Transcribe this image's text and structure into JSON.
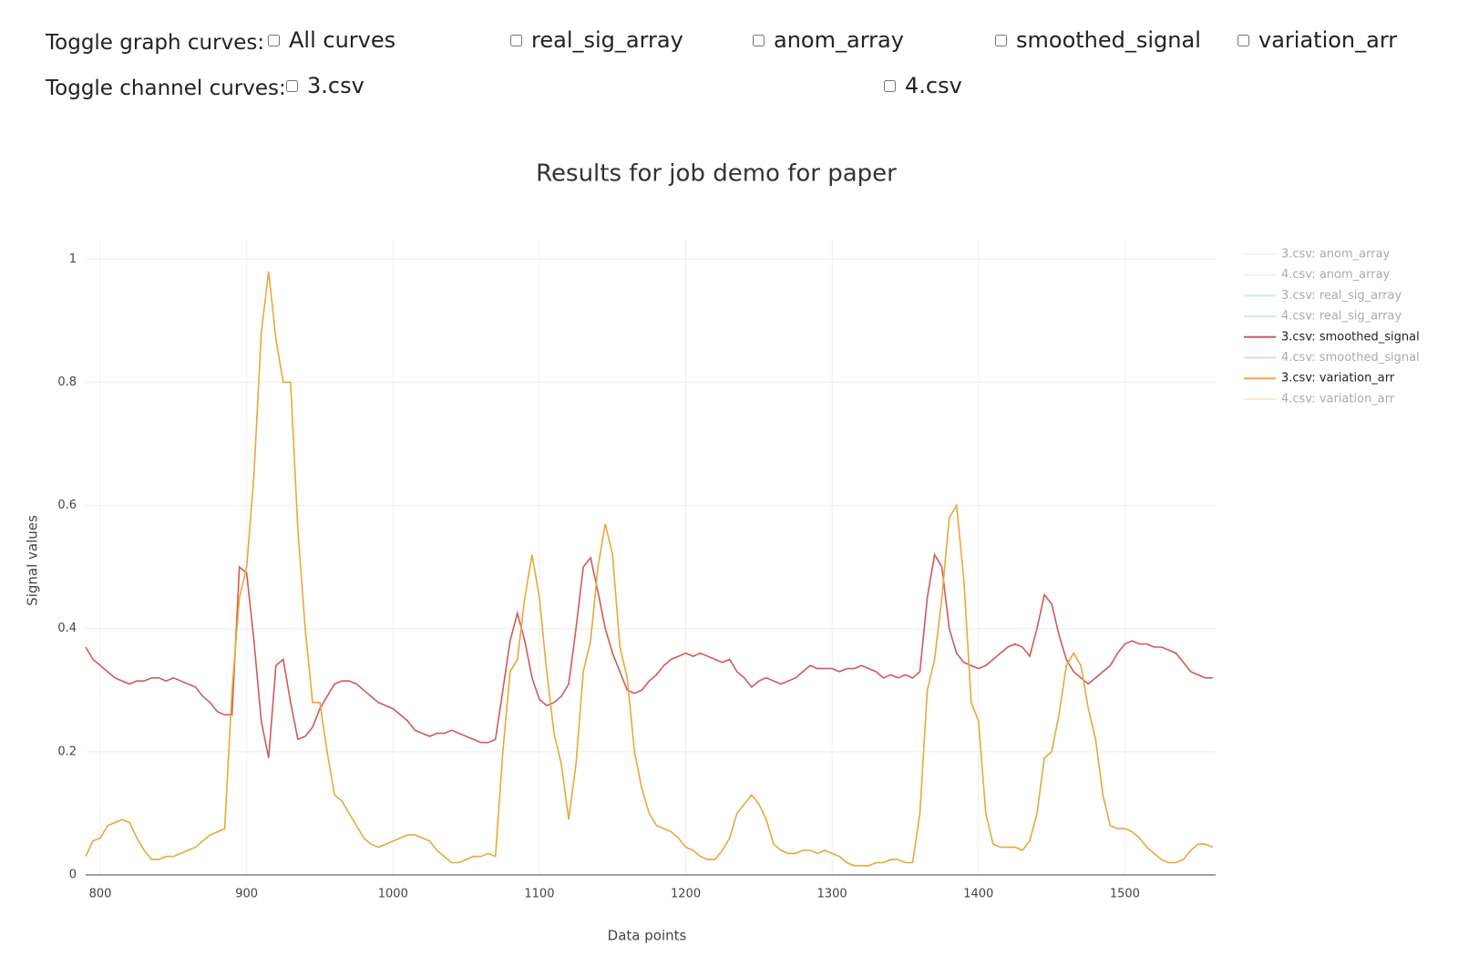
{
  "controls": {
    "graph_label": "Toggle graph curves:",
    "graph_options": [
      "All curves",
      "real_sig_array",
      "anom_array",
      "smoothed_signal",
      "variation_arr"
    ],
    "channel_label": "Toggle channel curves:",
    "channel_options": [
      "3.csv",
      "4.csv"
    ]
  },
  "chart_data": {
    "type": "line",
    "title": "Results for job demo for paper",
    "x_label": "Data points",
    "y_label": "Signal values",
    "xlim": [
      790,
      1562
    ],
    "xticks": [
      800,
      900,
      1000,
      1100,
      1200,
      1300,
      1400,
      1500
    ],
    "ylim": [
      0,
      1.033
    ],
    "yticks": [
      0,
      0.2,
      0.4,
      0.6,
      0.8,
      1
    ],
    "grid": true,
    "x": [
      790,
      795,
      800,
      805,
      810,
      815,
      820,
      825,
      830,
      835,
      840,
      845,
      850,
      855,
      860,
      865,
      870,
      875,
      880,
      885,
      890,
      895,
      900,
      905,
      910,
      915,
      920,
      925,
      930,
      935,
      940,
      945,
      950,
      955,
      960,
      965,
      970,
      975,
      980,
      985,
      990,
      995,
      1000,
      1005,
      1010,
      1015,
      1020,
      1025,
      1030,
      1035,
      1040,
      1045,
      1050,
      1055,
      1060,
      1065,
      1070,
      1075,
      1080,
      1085,
      1090,
      1095,
      1100,
      1105,
      1110,
      1115,
      1120,
      1125,
      1130,
      1135,
      1140,
      1145,
      1150,
      1155,
      1160,
      1165,
      1170,
      1175,
      1180,
      1185,
      1190,
      1195,
      1200,
      1205,
      1210,
      1215,
      1220,
      1225,
      1230,
      1235,
      1240,
      1245,
      1250,
      1255,
      1260,
      1265,
      1270,
      1275,
      1280,
      1285,
      1290,
      1295,
      1300,
      1305,
      1310,
      1315,
      1320,
      1325,
      1330,
      1335,
      1340,
      1345,
      1350,
      1355,
      1360,
      1365,
      1370,
      1375,
      1380,
      1385,
      1390,
      1395,
      1400,
      1405,
      1410,
      1415,
      1420,
      1425,
      1430,
      1435,
      1440,
      1445,
      1450,
      1455,
      1460,
      1465,
      1470,
      1475,
      1480,
      1485,
      1490,
      1495,
      1500,
      1505,
      1510,
      1515,
      1520,
      1525,
      1530,
      1535,
      1540,
      1545,
      1550,
      1555,
      1560
    ],
    "series": [
      {
        "name": "3.csv: anom_array",
        "color": "#e8e6d8",
        "visible": false
      },
      {
        "name": "4.csv: anom_array",
        "color": "#e8e6d8",
        "visible": false
      },
      {
        "name": "3.csv: real_sig_array",
        "color": "#9ecae1",
        "visible": false
      },
      {
        "name": "4.csv: real_sig_array",
        "color": "#9ecae1",
        "visible": false
      },
      {
        "name": "3.csv: smoothed_signal",
        "color": "#d05a5a",
        "visible": true,
        "values": [
          0.37,
          0.35,
          0.34,
          0.33,
          0.32,
          0.315,
          0.31,
          0.315,
          0.315,
          0.32,
          0.32,
          0.315,
          0.32,
          0.315,
          0.31,
          0.305,
          0.29,
          0.28,
          0.265,
          0.26,
          0.26,
          0.5,
          0.49,
          0.38,
          0.25,
          0.19,
          0.34,
          0.35,
          0.28,
          0.22,
          0.225,
          0.24,
          0.27,
          0.29,
          0.31,
          0.315,
          0.315,
          0.31,
          0.3,
          0.29,
          0.28,
          0.275,
          0.27,
          0.26,
          0.25,
          0.235,
          0.23,
          0.225,
          0.23,
          0.23,
          0.235,
          0.23,
          0.225,
          0.22,
          0.215,
          0.215,
          0.22,
          0.3,
          0.38,
          0.425,
          0.38,
          0.32,
          0.285,
          0.275,
          0.28,
          0.29,
          0.31,
          0.4,
          0.5,
          0.515,
          0.46,
          0.4,
          0.36,
          0.33,
          0.3,
          0.295,
          0.3,
          0.315,
          0.325,
          0.34,
          0.35,
          0.355,
          0.36,
          0.355,
          0.36,
          0.355,
          0.35,
          0.345,
          0.35,
          0.33,
          0.32,
          0.305,
          0.315,
          0.32,
          0.315,
          0.31,
          0.315,
          0.32,
          0.33,
          0.34,
          0.335,
          0.335,
          0.335,
          0.33,
          0.335,
          0.335,
          0.34,
          0.335,
          0.33,
          0.32,
          0.325,
          0.32,
          0.325,
          0.32,
          0.33,
          0.45,
          0.52,
          0.5,
          0.4,
          0.36,
          0.345,
          0.34,
          0.335,
          0.34,
          0.35,
          0.36,
          0.37,
          0.375,
          0.37,
          0.355,
          0.4,
          0.455,
          0.44,
          0.39,
          0.35,
          0.33,
          0.32,
          0.31,
          0.32,
          0.33,
          0.34,
          0.36,
          0.375,
          0.38,
          0.375,
          0.375,
          0.37,
          0.37,
          0.365,
          0.36,
          0.345,
          0.33,
          0.325,
          0.32,
          0.32
        ]
      },
      {
        "name": "4.csv: smoothed_signal",
        "color": "#e3a5a5",
        "visible": false
      },
      {
        "name": "3.csv: variation_arr",
        "color": "#e8a83a",
        "visible": true,
        "values": [
          0.03,
          0.055,
          0.06,
          0.08,
          0.085,
          0.09,
          0.085,
          0.06,
          0.04,
          0.025,
          0.025,
          0.03,
          0.03,
          0.035,
          0.04,
          0.045,
          0.055,
          0.065,
          0.07,
          0.075,
          0.3,
          0.45,
          0.5,
          0.65,
          0.88,
          0.98,
          0.87,
          0.8,
          0.8,
          0.56,
          0.4,
          0.28,
          0.28,
          0.2,
          0.13,
          0.12,
          0.1,
          0.08,
          0.06,
          0.05,
          0.045,
          0.05,
          0.055,
          0.06,
          0.065,
          0.065,
          0.06,
          0.055,
          0.04,
          0.03,
          0.02,
          0.02,
          0.025,
          0.03,
          0.03,
          0.035,
          0.03,
          0.2,
          0.33,
          0.35,
          0.45,
          0.52,
          0.45,
          0.33,
          0.23,
          0.18,
          0.09,
          0.18,
          0.33,
          0.38,
          0.5,
          0.57,
          0.52,
          0.37,
          0.32,
          0.2,
          0.14,
          0.1,
          0.08,
          0.075,
          0.07,
          0.06,
          0.045,
          0.04,
          0.03,
          0.025,
          0.025,
          0.04,
          0.06,
          0.1,
          0.115,
          0.13,
          0.115,
          0.09,
          0.05,
          0.04,
          0.035,
          0.035,
          0.04,
          0.04,
          0.035,
          0.04,
          0.035,
          0.03,
          0.02,
          0.015,
          0.015,
          0.015,
          0.02,
          0.02,
          0.025,
          0.025,
          0.02,
          0.02,
          0.1,
          0.3,
          0.35,
          0.45,
          0.58,
          0.6,
          0.48,
          0.28,
          0.25,
          0.1,
          0.05,
          0.045,
          0.045,
          0.045,
          0.04,
          0.055,
          0.1,
          0.19,
          0.2,
          0.26,
          0.34,
          0.36,
          0.34,
          0.27,
          0.22,
          0.13,
          0.08,
          0.075,
          0.075,
          0.07,
          0.06,
          0.045,
          0.035,
          0.025,
          0.02,
          0.02,
          0.025,
          0.04,
          0.05,
          0.05,
          0.045
        ]
      },
      {
        "name": "4.csv: variation_arr",
        "color": "#f5cf8c",
        "visible": false
      }
    ]
  }
}
